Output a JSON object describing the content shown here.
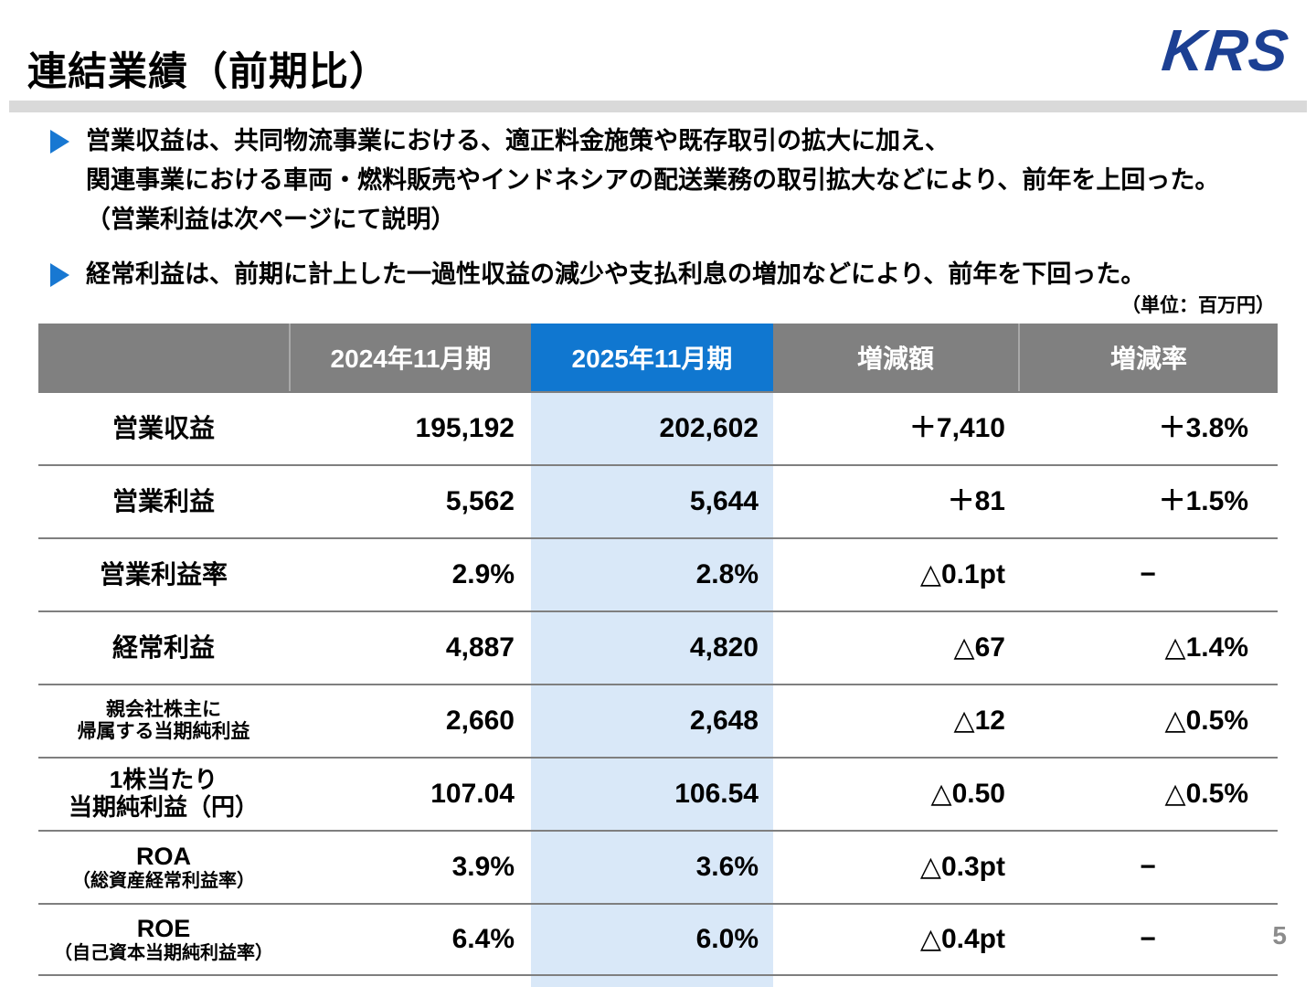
{
  "header": {
    "title": "連結業績（前期比）",
    "logo": "KRS"
  },
  "bullets": [
    {
      "lines": [
        "営業収益は、共同物流事業における、適正料金施策や既存取引の拡大に加え、",
        "関連事業における車両・燃料販売やインドネシアの配送業務の取引拡大などにより、前年を上回った。",
        "（営業利益は次ページにて説明）"
      ]
    },
    {
      "lines": [
        "経常利益は、前期に計上した一過性収益の減少や支払利息の増加などにより、前年を下回った。"
      ]
    }
  ],
  "table": {
    "unit_note": "（単位：百万円）",
    "columns": [
      "",
      "2024年11月期",
      "2025年11月期",
      "増減額",
      "増減率"
    ],
    "rows": [
      {
        "label": "営業収益",
        "y2024": "195,192",
        "y2025": "202,602",
        "diff": "＋7,410",
        "rate": "＋3.8%"
      },
      {
        "label": "営業利益",
        "y2024": "5,562",
        "y2025": "5,644",
        "diff": "＋81",
        "rate": "＋1.5%"
      },
      {
        "label": "営業利益率",
        "y2024": "2.9%",
        "y2025": "2.8%",
        "diff": "△0.1pt",
        "rate": "−"
      },
      {
        "label": "経常利益",
        "y2024": "4,887",
        "y2025": "4,820",
        "diff": "△67",
        "rate": "△1.4%"
      },
      {
        "label": "親会社株主に",
        "label2": "帰属する当期純利益",
        "y2024": "2,660",
        "y2025": "2,648",
        "diff": "△12",
        "rate": "△0.5%"
      },
      {
        "label": "1株当たり",
        "label2": "当期純利益（円）",
        "y2024": "107.04",
        "y2025": "106.54",
        "diff": "△0.50",
        "rate": "△0.5%"
      },
      {
        "label": "ROA",
        "label2": "（総資産経常利益率）",
        "y2024": "3.9%",
        "y2025": "3.6%",
        "diff": "△0.3pt",
        "rate": "−"
      },
      {
        "label": "ROE",
        "label2": "（自己資本当期純利益率）",
        "y2024": "6.4%",
        "y2025": "6.0%",
        "diff": "△0.4pt",
        "rate": "−"
      }
    ]
  },
  "footer": {
    "page_number": "5"
  },
  "colors": {
    "accent_blue": "#1077d0",
    "header_gray": "#808080",
    "highlight_column": "#d9e8f8",
    "logo_navy": "#1c4093",
    "band_gray": "#d9d9d9"
  }
}
